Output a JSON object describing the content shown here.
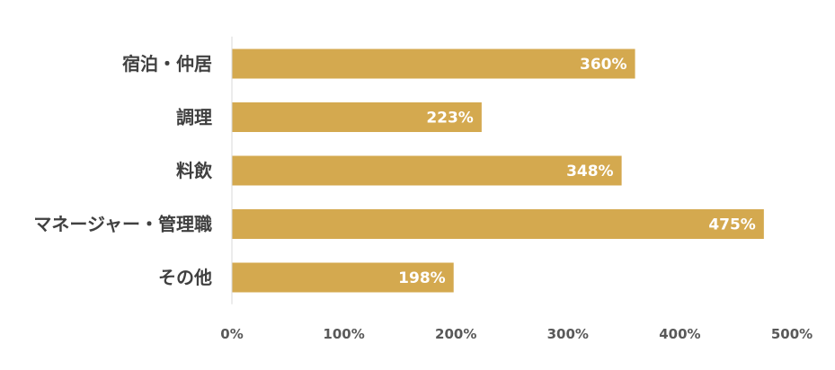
{
  "chart_data": {
    "type": "bar",
    "orientation": "horizontal",
    "categories": [
      "宿泊・仲居",
      "調理",
      "料飲",
      "マネージャー・管理職",
      "その他"
    ],
    "values": [
      360,
      223,
      348,
      475,
      198
    ],
    "value_labels": [
      "360%",
      "223%",
      "348%",
      "475%",
      "198%"
    ],
    "xlim": [
      0,
      500
    ],
    "x_ticks": [
      0,
      100,
      200,
      300,
      400,
      500
    ],
    "x_tick_labels": [
      "0%",
      "100%",
      "200%",
      "300%",
      "400%",
      "500%"
    ],
    "grid": false,
    "legend": "none",
    "bar_color": "#D4A94F",
    "value_label_color": "#FFFFFF",
    "category_label_color": "#404040",
    "tick_label_color": "#595959",
    "axis_line_color": "#D9D9D9"
  }
}
